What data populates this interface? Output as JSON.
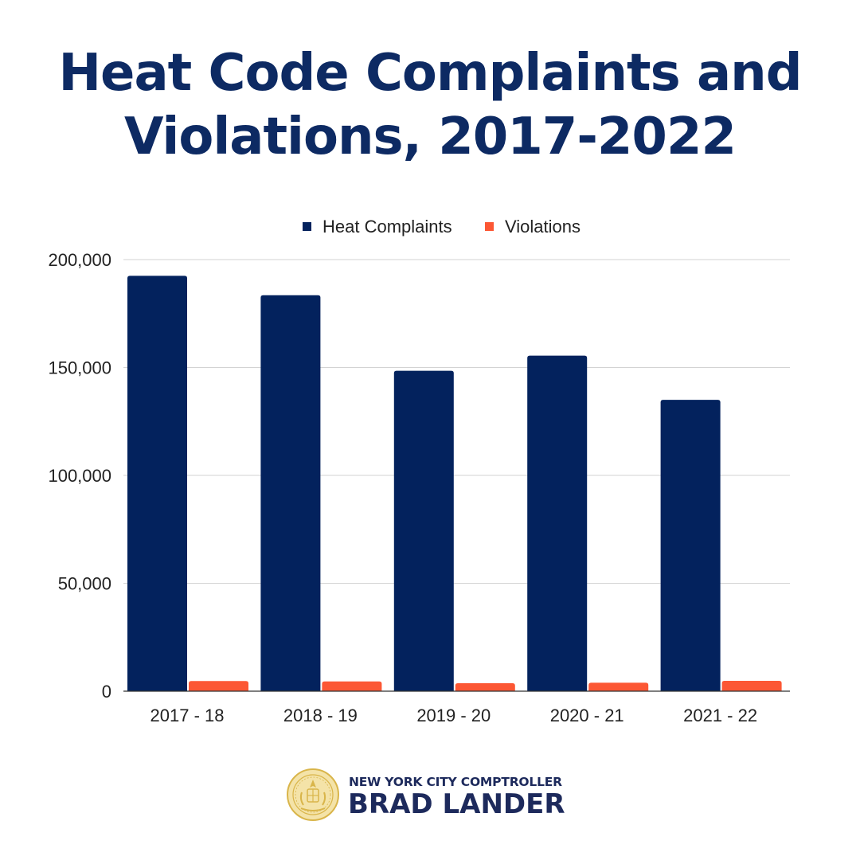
{
  "title": {
    "line1": "Heat Code Complaints and",
    "line2": "Violations, 2017-2022"
  },
  "colors": {
    "title": "#0d2a63",
    "heat_complaints": "#03225d",
    "violations": "#fc5734",
    "gridline": "#d3d3d3",
    "footer_text": "#1d2a5c",
    "seal": "#d9b54a"
  },
  "chart_data": {
    "type": "bar",
    "title": "Heat Code Complaints and Violations, 2017-2022",
    "xlabel": "",
    "ylabel": "",
    "categories": [
      "2017 - 18",
      "2018 - 19",
      "2019 - 20",
      "2020 - 21",
      "2021 - 22"
    ],
    "series": [
      {
        "name": "Heat Complaints",
        "values": [
          192500,
          183500,
          148500,
          155500,
          135000
        ]
      },
      {
        "name": "Violations",
        "values": [
          4700,
          4500,
          3700,
          3900,
          4800
        ]
      }
    ],
    "ylim": [
      0,
      200000
    ],
    "yticks": [
      {
        "value": 0,
        "label": "0"
      },
      {
        "value": 50000,
        "label": "50,000"
      },
      {
        "value": 100000,
        "label": "100,000"
      },
      {
        "value": 150000,
        "label": "150,000"
      },
      {
        "value": 200000,
        "label": "200,000"
      }
    ],
    "grid": true,
    "legend": "top-center"
  },
  "footer": {
    "line1": "NEW YORK CITY COMPTROLLER",
    "line2": "BRAD LANDER",
    "seal_icon": "nyc-seal-icon"
  }
}
